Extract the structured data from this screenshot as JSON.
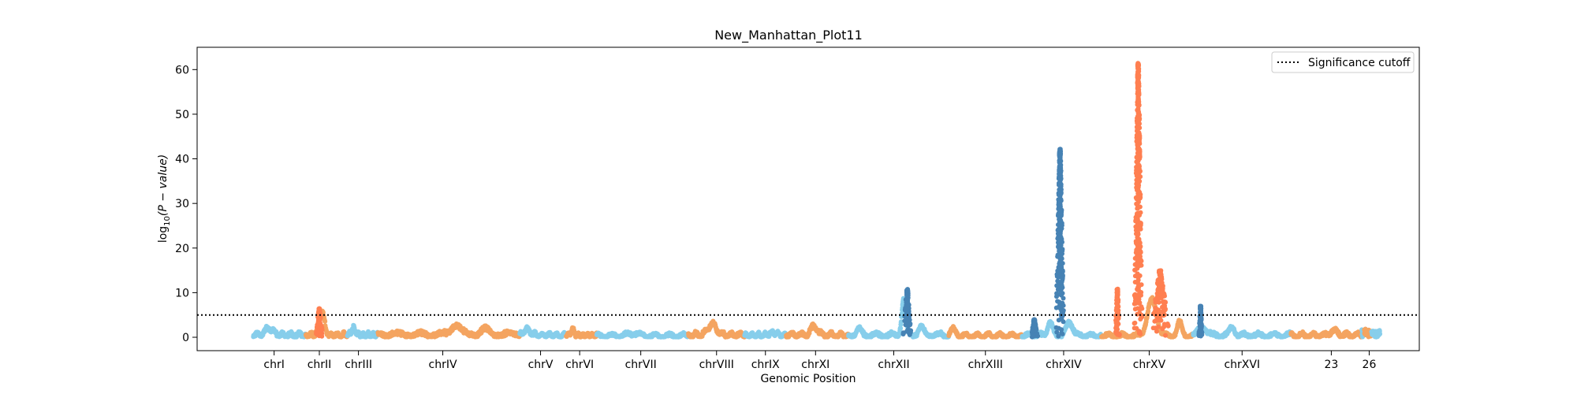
{
  "chart_data": {
    "type": "scatter",
    "title": "New_Manhattan_Plot11",
    "xlabel": "Genomic Position",
    "ylabel": "log10(P-value)",
    "ylabel_parts": {
      "prefix": "log",
      "sub": "10",
      "rest": "(P − value)"
    },
    "ylim": [
      -3,
      65
    ],
    "xlim": [
      0,
      100
    ],
    "yticks": [
      0,
      10,
      20,
      30,
      40,
      50,
      60
    ],
    "grid": false,
    "legend_position": "top-right",
    "significance_cutoff": 5,
    "legend": [
      {
        "label": "Significance cutoff",
        "style": "dotted"
      }
    ],
    "colors": {
      "light_blue": "#87ceeb",
      "dark_blue": "#4682b4",
      "light_orange": "#f4a460",
      "dark_orange": "#ff7f50"
    },
    "chromosomes": [
      {
        "label": "chrI",
        "start": 4.6,
        "end": 8.9,
        "color": "light_blue",
        "base": 0.8,
        "peaks": [
          {
            "pos": 0.3,
            "h": 1.5,
            "w": 0.15
          }
        ]
      },
      {
        "label": "chrII",
        "start": 8.9,
        "end": 12.3,
        "color": "light_orange",
        "base": 0.8,
        "peaks": [
          {
            "pos": 0.38,
            "h": 5.5,
            "w": 0.12
          }
        ]
      },
      {
        "label": "chrIII",
        "start": 12.3,
        "end": 14.8,
        "color": "light_blue",
        "base": 0.7,
        "peaks": [
          {
            "pos": 0.2,
            "h": 1.4,
            "w": 0.15
          }
        ]
      },
      {
        "label": "chrIV",
        "start": 14.8,
        "end": 26.4,
        "color": "light_orange",
        "base": 1.0,
        "peaks": [
          {
            "pos": 0.55,
            "h": 2.3,
            "w": 0.06
          },
          {
            "pos": 0.75,
            "h": 1.2,
            "w": 0.05
          }
        ]
      },
      {
        "label": "chrV",
        "start": 26.4,
        "end": 30.2,
        "color": "light_blue",
        "base": 0.7,
        "peaks": [
          {
            "pos": 0.15,
            "h": 1.2,
            "w": 0.15
          }
        ]
      },
      {
        "label": "chrVI",
        "start": 30.2,
        "end": 32.7,
        "color": "light_orange",
        "base": 0.6,
        "peaks": [
          {
            "pos": 0.2,
            "h": 1.3,
            "w": 0.12
          }
        ]
      },
      {
        "label": "chrVII",
        "start": 32.7,
        "end": 40.2,
        "color": "light_blue",
        "base": 0.5,
        "peaks": [
          {
            "pos": 0.4,
            "h": 0.6,
            "w": 0.1
          }
        ]
      },
      {
        "label": "chrVIII",
        "start": 40.2,
        "end": 44.8,
        "color": "light_orange",
        "base": 0.8,
        "peaks": [
          {
            "pos": 0.42,
            "h": 2.5,
            "w": 0.15
          }
        ]
      },
      {
        "label": "chrIX",
        "start": 44.8,
        "end": 48.2,
        "color": "light_blue",
        "base": 0.6,
        "peaks": [
          {
            "pos": 0.7,
            "h": 0.6,
            "w": 0.2
          }
        ]
      },
      {
        "label": "chrXI",
        "start": 48.2,
        "end": 53.3,
        "color": "light_orange",
        "base": 0.8,
        "peaks": [
          {
            "pos": 0.45,
            "h": 2.0,
            "w": 0.1
          }
        ]
      },
      {
        "label": "chrXII",
        "start": 53.3,
        "end": 61.5,
        "color": "light_blue",
        "base": 0.7,
        "peaks": [
          {
            "pos": 0.1,
            "h": 1.3,
            "w": 0.05
          },
          {
            "pos": 0.55,
            "h": 8.0,
            "w": 0.04
          },
          {
            "pos": 0.72,
            "h": 2.0,
            "w": 0.05
          }
        ]
      },
      {
        "label": "chrXIII",
        "start": 61.5,
        "end": 67.5,
        "color": "light_orange",
        "base": 0.5,
        "peaks": [
          {
            "pos": 0.05,
            "h": 1.5,
            "w": 0.08
          }
        ]
      },
      {
        "label": "chrXIV",
        "start": 67.5,
        "end": 74.0,
        "color": "light_blue",
        "base": 0.6,
        "peaks": [
          {
            "pos": 0.35,
            "h": 3.0,
            "w": 0.06
          },
          {
            "pos": 0.6,
            "h": 3.0,
            "w": 0.08
          }
        ]
      },
      {
        "label": "chrXV",
        "start": 74.0,
        "end": 81.5,
        "color": "light_orange",
        "base": 0.5,
        "peaks": [
          {
            "pos": 0.55,
            "h": 8.0,
            "w": 0.1
          },
          {
            "pos": 0.85,
            "h": 3.0,
            "w": 0.05
          }
        ]
      },
      {
        "label": "chrXVI",
        "start": 81.5,
        "end": 89.5,
        "color": "light_blue",
        "base": 0.7,
        "peaks": [
          {
            "pos": 0.1,
            "h": 1.8,
            "w": 0.08
          },
          {
            "pos": 0.4,
            "h": 1.8,
            "w": 0.05
          }
        ]
      },
      {
        "label": "",
        "start": 89.5,
        "end": 95.3,
        "color": "light_orange",
        "base": 0.7,
        "peaks": [
          {
            "pos": 0.6,
            "h": 1.0,
            "w": 0.1
          }
        ]
      },
      {
        "label": "",
        "start": 95.3,
        "end": 95.5,
        "color": "light_blue",
        "base": 1.2,
        "peaks": []
      },
      {
        "label": "",
        "start": 95.5,
        "end": 96.1,
        "color": "light_orange",
        "base": 1.5,
        "peaks": []
      },
      {
        "label": "",
        "start": 96.1,
        "end": 96.8,
        "color": "light_blue",
        "base": 1.5,
        "peaks": []
      }
    ],
    "strong_peaks": [
      {
        "x": 70.6,
        "y_max": 42.5,
        "color": "dark_blue",
        "width": 0.35
      },
      {
        "x": 75.3,
        "y_max": 11.0,
        "color": "dark_orange",
        "width": 0.2
      },
      {
        "x": 77.0,
        "y_max": 61.5,
        "color": "dark_orange",
        "width": 0.35
      },
      {
        "x": 78.8,
        "y_max": 15.0,
        "color": "dark_orange",
        "width": 0.8
      },
      {
        "x": 58.1,
        "y_max": 11.0,
        "color": "dark_blue",
        "width": 0.35
      },
      {
        "x": 10.0,
        "y_max": 6.5,
        "color": "dark_orange",
        "width": 0.3
      },
      {
        "x": 82.1,
        "y_max": 7.0,
        "color": "dark_blue",
        "width": 0.15
      },
      {
        "x": 68.5,
        "y_max": 4.0,
        "color": "dark_blue",
        "width": 0.3
      }
    ],
    "xticks": [
      {
        "label": "chrI",
        "x": 6.3
      },
      {
        "label": "chrII",
        "x": 10.0
      },
      {
        "label": "chrIII",
        "x": 13.2
      },
      {
        "label": "chrIV",
        "x": 20.1
      },
      {
        "label": "chrV",
        "x": 28.1
      },
      {
        "label": "chrVI",
        "x": 31.3
      },
      {
        "label": "chrVII",
        "x": 36.3
      },
      {
        "label": "chrVIII",
        "x": 42.5
      },
      {
        "label": "chrIX",
        "x": 46.5
      },
      {
        "label": "chrXI",
        "x": 50.6
      },
      {
        "label": "chrXII",
        "x": 57.0
      },
      {
        "label": "chrXIII",
        "x": 64.5
      },
      {
        "label": "chrXIV",
        "x": 70.9
      },
      {
        "label": "chrXV",
        "x": 77.9
      },
      {
        "label": "chrXVI",
        "x": 85.5
      },
      {
        "label": "23",
        "x": 92.8
      },
      {
        "label": "26",
        "x": 95.9
      }
    ]
  }
}
